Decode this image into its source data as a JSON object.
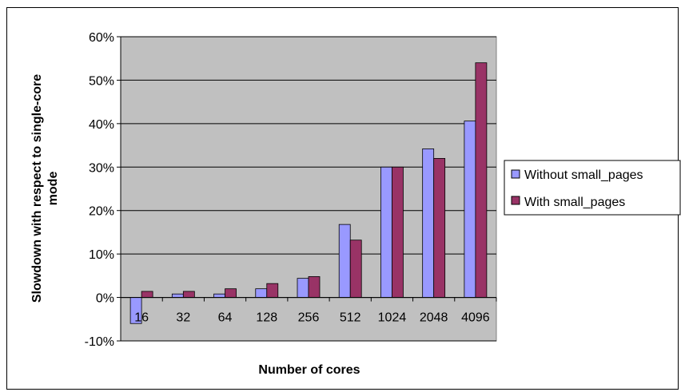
{
  "chart_data": {
    "type": "bar",
    "title": "",
    "xlabel": "Number of cores",
    "ylabel_lines": [
      "Slowdown with respect to single-core",
      "mode"
    ],
    "categories": [
      "16",
      "32",
      "64",
      "128",
      "256",
      "512",
      "1024",
      "2048",
      "4096"
    ],
    "y_ticks": [
      "-10%",
      "0%",
      "10%",
      "20%",
      "30%",
      "40%",
      "50%",
      "60%"
    ],
    "ylim": [
      -10,
      60
    ],
    "y_step": 10,
    "grid": "horizontal",
    "legend_position": "right",
    "series": [
      {
        "name": "Without small_pages",
        "color": "#9999ff",
        "values": [
          -6,
          0.8,
          0.8,
          2,
          4.4,
          16.8,
          30,
          34.2,
          40.6
        ]
      },
      {
        "name": "With small_pages",
        "color": "#993366",
        "values": [
          1.4,
          1.4,
          2,
          3.2,
          4.8,
          13.2,
          30,
          32,
          54
        ]
      }
    ],
    "plot_background": "#c0c0c0"
  }
}
